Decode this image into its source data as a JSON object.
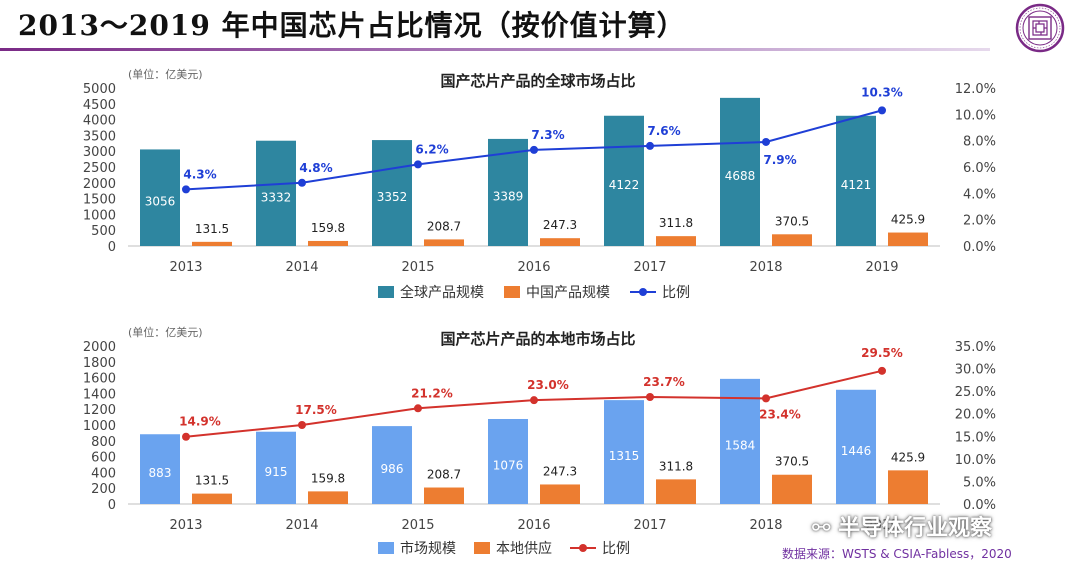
{
  "slide": {
    "title": "2013～2019 年中国芯片占比情况（按价值计算）",
    "watermark": "半导体行业观察",
    "source": "数据来源：WSTS & CSIA-Fabless，2020"
  },
  "colors": {
    "global_bar": "#2e86a0",
    "china_bar": "#ed7d31",
    "global_line": "#1f3fd6",
    "market_bar": "#6aa3ef",
    "local_line": "#d3322c",
    "accent": "#7a2a86"
  },
  "chart_data": [
    {
      "type": "bar",
      "title": "国产芯片产品的全球市场占比",
      "unit_label": "(单位：亿美元)",
      "categories": [
        "2013",
        "2014",
        "2015",
        "2016",
        "2017",
        "2018",
        "2019"
      ],
      "series": [
        {
          "name": "全球产品规模",
          "values": [
            3056,
            3332,
            3352,
            3389,
            4122,
            4688,
            4121
          ],
          "labels": [
            "3056",
            "3332",
            "3352",
            "3389",
            "4122",
            "4688",
            "4121"
          ]
        },
        {
          "name": "中国产品规模",
          "values": [
            131.5,
            159.8,
            208.7,
            247.3,
            311.8,
            370.5,
            425.9
          ],
          "labels": [
            "131.5",
            "159.8",
            "208.7",
            "247.3",
            "311.8",
            "370.5",
            "425.9"
          ]
        },
        {
          "name": "比例",
          "type": "line",
          "axis": "right",
          "values": [
            4.3,
            4.8,
            6.2,
            7.3,
            7.6,
            7.9,
            10.3
          ],
          "labels": [
            "4.3%",
            "4.8%",
            "6.2%",
            "7.3%",
            "7.6%",
            "7.9%",
            "10.3%"
          ]
        }
      ],
      "ylim": [
        0,
        5000
      ],
      "yticks": [
        "0",
        "500",
        "1000",
        "1500",
        "2000",
        "2500",
        "3000",
        "3500",
        "4000",
        "4500",
        "5000"
      ],
      "y2lim": [
        0,
        12
      ],
      "y2ticks": [
        "0.0%",
        "2.0%",
        "4.0%",
        "6.0%",
        "8.0%",
        "10.0%",
        "12.0%"
      ],
      "legend": "bottom",
      "grid": false
    },
    {
      "type": "bar",
      "title": "国产芯片产品的本地市场占比",
      "unit_label": "(单位：亿美元)",
      "categories": [
        "2013",
        "2014",
        "2015",
        "2016",
        "2017",
        "2018",
        "2019"
      ],
      "series": [
        {
          "name": "市场规模",
          "values": [
            883,
            915,
            986,
            1076,
            1315,
            1584,
            1446
          ],
          "labels": [
            "883",
            "915",
            "986",
            "1076",
            "1315",
            "1584",
            "1446"
          ]
        },
        {
          "name": "本地供应",
          "values": [
            131.5,
            159.8,
            208.7,
            247.3,
            311.8,
            370.5,
            425.9
          ],
          "labels": [
            "131.5",
            "159.8",
            "208.7",
            "247.3",
            "311.8",
            "370.5",
            "425.9"
          ]
        },
        {
          "name": "比例",
          "type": "line",
          "axis": "right",
          "values": [
            14.9,
            17.5,
            21.2,
            23.0,
            23.7,
            23.4,
            29.5
          ],
          "labels": [
            "14.9%",
            "17.5%",
            "21.2%",
            "23.0%",
            "23.7%",
            "23.4%",
            "29.5%"
          ]
        }
      ],
      "ylim": [
        0,
        2000
      ],
      "yticks": [
        "0",
        "200",
        "400",
        "600",
        "800",
        "1000",
        "1200",
        "1400",
        "1600",
        "1800",
        "2000"
      ],
      "y2lim": [
        0,
        35
      ],
      "y2ticks": [
        "0.0%",
        "5.0%",
        "10.0%",
        "15.0%",
        "20.0%",
        "25.0%",
        "30.0%",
        "35.0%"
      ],
      "legend": "bottom",
      "grid": false
    }
  ]
}
